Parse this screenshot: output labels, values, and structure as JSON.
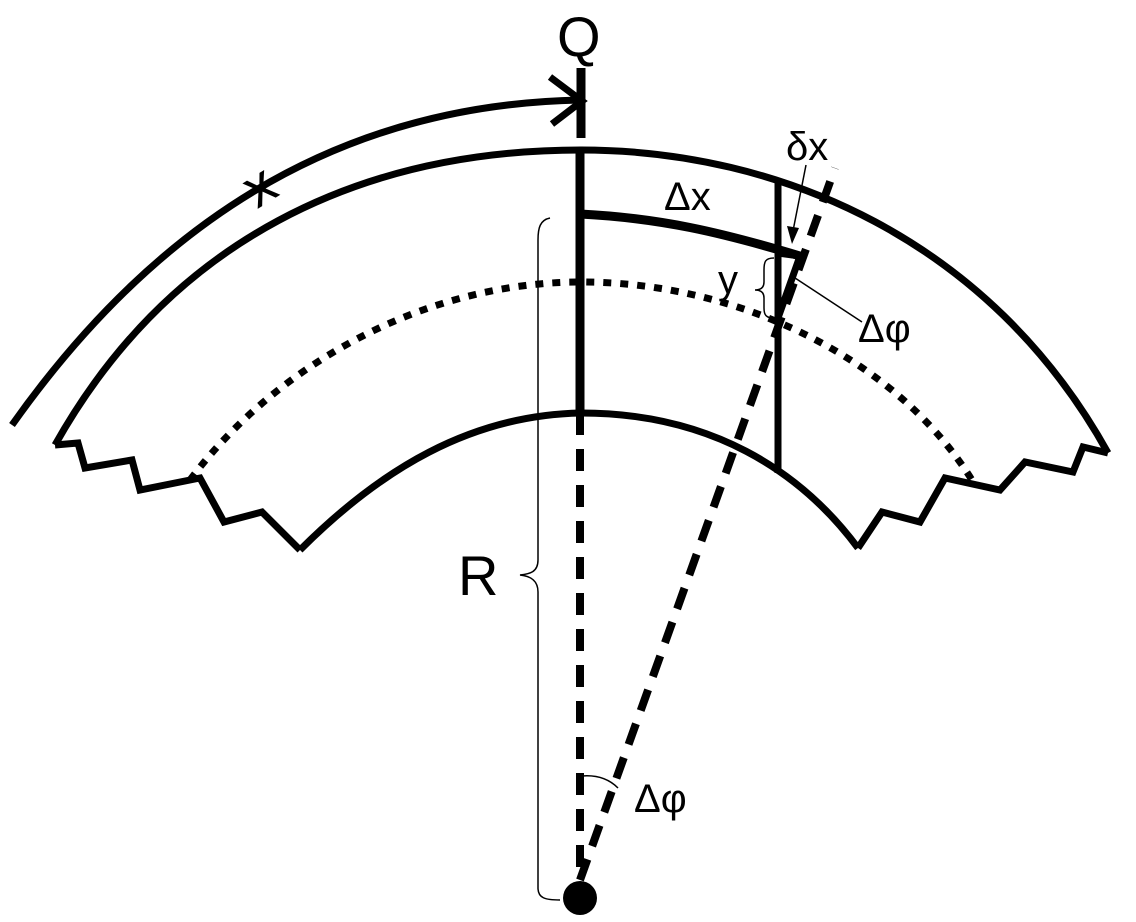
{
  "labels": {
    "q": "Q",
    "x": "x",
    "delta_x": "Δx",
    "small_delta_x": "δx",
    "y": "y",
    "delta_phi_top": "Δφ",
    "delta_phi_bottom": "Δφ",
    "r": "R"
  },
  "colors": {
    "stroke": "#000000",
    "background": "#ffffff"
  }
}
